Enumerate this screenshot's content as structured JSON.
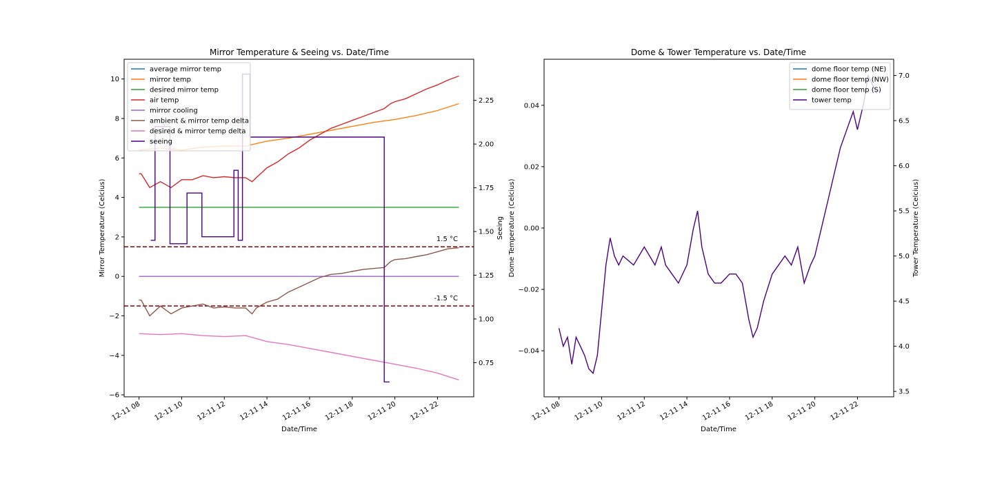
{
  "chart_data": [
    {
      "type": "line",
      "title": "Mirror Temperature & Seeing vs. Date/Time",
      "xlabel": "Date/Time",
      "ylabel": "Mirror Temperature (Celcius)",
      "y2label": "Seeing",
      "x_ticks": [
        "12-11 08",
        "12-11 10",
        "12-11 12",
        "12-11 14",
        "12-11 16",
        "12-11 18",
        "12-11 20",
        "12-11 22"
      ],
      "x_tick_hours": [
        8,
        10,
        12,
        14,
        16,
        18,
        20,
        22
      ],
      "xlim_hours": [
        7.3,
        23.7
      ],
      "ylim": [
        -6.1,
        11.0
      ],
      "y_ticks": [
        -6,
        -4,
        -2,
        0,
        2,
        4,
        6,
        8,
        10
      ],
      "y2lim": [
        0.555,
        2.485
      ],
      "y2_ticks": [
        "0.75",
        "1.00",
        "1.25",
        "1.50",
        "1.75",
        "2.00",
        "2.25"
      ],
      "y2_tick_values": [
        0.75,
        1.0,
        1.25,
        1.5,
        1.75,
        2.0,
        2.25
      ],
      "legend_position": "upper-left",
      "hlines": [
        {
          "y": 1.5,
          "label": "1.5 °C",
          "color": "#8b0000"
        },
        {
          "y": -1.5,
          "label": "-1.5 °C",
          "color": "#8b0000"
        }
      ],
      "series": [
        {
          "name": "average mirror temp",
          "color": "#1f77b4",
          "axis": "left",
          "x": [],
          "y": []
        },
        {
          "name": "mirror temp",
          "color": "#ff7f0e",
          "axis": "left",
          "x": [
            8.0,
            9.0,
            10.0,
            11.0,
            12.0,
            13.0,
            14.0,
            15.0,
            16.0,
            17.0,
            18.0,
            19.0,
            20.0,
            21.0,
            22.0,
            23.0
          ],
          "y": [
            6.4,
            6.5,
            6.4,
            6.55,
            6.6,
            6.6,
            6.85,
            7.0,
            7.2,
            7.4,
            7.6,
            7.8,
            7.95,
            8.15,
            8.4,
            8.75
          ]
        },
        {
          "name": "desired mirror temp",
          "color": "#2ca02c",
          "axis": "left",
          "x": [
            8.0,
            23.0
          ],
          "y": [
            3.5,
            3.5
          ]
        },
        {
          "name": "air temp",
          "color": "#d62728",
          "axis": "left",
          "x": [
            8.0,
            8.1,
            8.5,
            9.0,
            9.5,
            10.0,
            10.5,
            11.0,
            11.5,
            12.0,
            12.5,
            13.0,
            13.3,
            13.5,
            14.0,
            14.5,
            15.0,
            15.5,
            16.0,
            16.5,
            17.0,
            17.5,
            18.0,
            18.5,
            19.0,
            19.5,
            19.8,
            20.0,
            20.5,
            21.0,
            21.5,
            22.0,
            22.5,
            23.0
          ],
          "y": [
            5.2,
            5.2,
            4.5,
            4.8,
            4.5,
            4.9,
            4.9,
            5.1,
            5.0,
            5.05,
            5.0,
            5.0,
            4.8,
            5.0,
            5.5,
            5.8,
            6.2,
            6.5,
            6.9,
            7.2,
            7.5,
            7.7,
            7.9,
            8.1,
            8.3,
            8.5,
            8.75,
            8.85,
            9.0,
            9.25,
            9.5,
            9.7,
            9.95,
            10.15
          ]
        },
        {
          "name": "mirror cooling",
          "color": "#9467bd",
          "axis": "left",
          "x": [
            8.0,
            23.0
          ],
          "y": [
            0.0,
            0.0
          ]
        },
        {
          "name": "ambient & mirror temp delta",
          "color": "#8c564b",
          "axis": "left",
          "x": [
            8.0,
            8.1,
            8.5,
            9.0,
            9.5,
            10.0,
            10.5,
            11.0,
            11.5,
            12.0,
            12.5,
            13.0,
            13.3,
            13.5,
            14.0,
            14.5,
            15.0,
            15.5,
            16.0,
            16.5,
            17.0,
            17.5,
            18.0,
            18.5,
            19.0,
            19.5,
            19.8,
            20.0,
            20.5,
            21.0,
            21.5,
            22.0,
            22.5,
            23.0
          ],
          "y": [
            -1.2,
            -1.2,
            -2.0,
            -1.5,
            -1.9,
            -1.6,
            -1.5,
            -1.4,
            -1.6,
            -1.55,
            -1.6,
            -1.6,
            -1.9,
            -1.6,
            -1.3,
            -1.15,
            -0.8,
            -0.55,
            -0.3,
            -0.05,
            0.1,
            0.15,
            0.25,
            0.35,
            0.4,
            0.45,
            0.75,
            0.85,
            0.9,
            1.0,
            1.1,
            1.25,
            1.4,
            1.45
          ]
        },
        {
          "name": "desired & mirror temp delta",
          "color": "#e377c2",
          "axis": "left",
          "x": [
            8.0,
            9.0,
            10.0,
            11.0,
            12.0,
            13.0,
            14.0,
            15.0,
            16.0,
            17.0,
            18.0,
            19.0,
            20.0,
            21.0,
            22.0,
            23.0
          ],
          "y": [
            -2.9,
            -2.95,
            -2.9,
            -3.0,
            -3.05,
            -3.0,
            -3.3,
            -3.45,
            -3.65,
            -3.85,
            -4.05,
            -4.25,
            -4.45,
            -4.65,
            -4.9,
            -5.25
          ]
        },
        {
          "name": "seeing",
          "color": "#4b0082",
          "axis": "right",
          "step": true,
          "x": [
            8.55,
            8.75,
            8.75,
            9.45,
            9.45,
            10.25,
            10.25,
            10.95,
            10.95,
            12.45,
            12.45,
            12.65,
            12.65,
            12.85,
            12.85,
            13.2,
            13.2,
            19.5,
            19.5,
            19.75
          ],
          "y": [
            1.45,
            1.45,
            2.1,
            2.1,
            1.43,
            1.43,
            1.72,
            1.72,
            1.47,
            1.47,
            1.85,
            1.85,
            1.45,
            1.45,
            2.4,
            2.4,
            2.04,
            2.04,
            0.64,
            0.64
          ]
        }
      ]
    },
    {
      "type": "line",
      "title": "Dome & Tower Temperature vs. Date/Time",
      "xlabel": "Date/Time",
      "ylabel": "Dome Temperature (Celcius)",
      "y2label": "Tower Temperature (Celcius)",
      "x_ticks": [
        "12-11 08",
        "12-11 10",
        "12-11 12",
        "12-11 14",
        "12-11 16",
        "12-11 18",
        "12-11 20",
        "12-11 22"
      ],
      "x_tick_hours": [
        8,
        10,
        12,
        14,
        16,
        18,
        20,
        22
      ],
      "xlim_hours": [
        7.3,
        23.7
      ],
      "ylim": [
        -0.055,
        0.055
      ],
      "y_ticks": [
        "−0.04",
        "−0.02",
        "0.00",
        "0.02",
        "0.04"
      ],
      "y_tick_values": [
        -0.04,
        -0.02,
        0.0,
        0.02,
        0.04
      ],
      "y2lim": [
        3.44,
        7.18
      ],
      "y2_ticks": [
        "3.5",
        "4.0",
        "4.5",
        "5.0",
        "5.5",
        "6.0",
        "6.5",
        "7.0"
      ],
      "y2_tick_values": [
        3.5,
        4.0,
        4.5,
        5.0,
        5.5,
        6.0,
        6.5,
        7.0
      ],
      "legend_position": "upper-right",
      "series": [
        {
          "name": "dome floor temp (NE)",
          "color": "#1f77b4",
          "axis": "left",
          "x": [],
          "y": []
        },
        {
          "name": "dome floor temp (NW)",
          "color": "#ff7f0e",
          "axis": "left",
          "x": [],
          "y": []
        },
        {
          "name": "dome floor temp (S)",
          "color": "#2ca02c",
          "axis": "left",
          "x": [],
          "y": []
        },
        {
          "name": "tower temp",
          "color": "#4b0082",
          "axis": "right",
          "step": true,
          "x": [
            8.0,
            8.2,
            8.4,
            8.6,
            8.8,
            9.0,
            9.2,
            9.4,
            9.6,
            9.8,
            10.0,
            10.2,
            10.4,
            10.6,
            10.8,
            11.0,
            11.5,
            12.0,
            12.5,
            12.8,
            13.0,
            13.3,
            13.6,
            14.0,
            14.3,
            14.5,
            14.7,
            15.0,
            15.3,
            15.6,
            16.0,
            16.3,
            16.6,
            16.9,
            17.1,
            17.3,
            17.6,
            18.0,
            18.3,
            18.6,
            18.9,
            19.2,
            19.5,
            19.8,
            20.0,
            20.3,
            20.6,
            20.9,
            21.2,
            21.5,
            21.8,
            22.0,
            22.3,
            22.5,
            22.7,
            22.9
          ],
          "y": [
            4.2,
            4.0,
            4.1,
            3.8,
            4.1,
            4.0,
            3.9,
            3.75,
            3.7,
            3.9,
            4.4,
            4.9,
            5.2,
            5.0,
            4.9,
            5.0,
            4.9,
            5.1,
            4.9,
            5.1,
            4.9,
            4.8,
            4.7,
            4.9,
            5.3,
            5.5,
            5.1,
            4.8,
            4.7,
            4.7,
            4.8,
            4.8,
            4.7,
            4.3,
            4.1,
            4.2,
            4.5,
            4.8,
            4.9,
            5.0,
            4.9,
            5.1,
            4.7,
            4.9,
            5.0,
            5.3,
            5.6,
            5.9,
            6.2,
            6.4,
            6.6,
            6.4,
            6.7,
            7.0,
            6.9,
            6.8
          ]
        }
      ]
    }
  ]
}
